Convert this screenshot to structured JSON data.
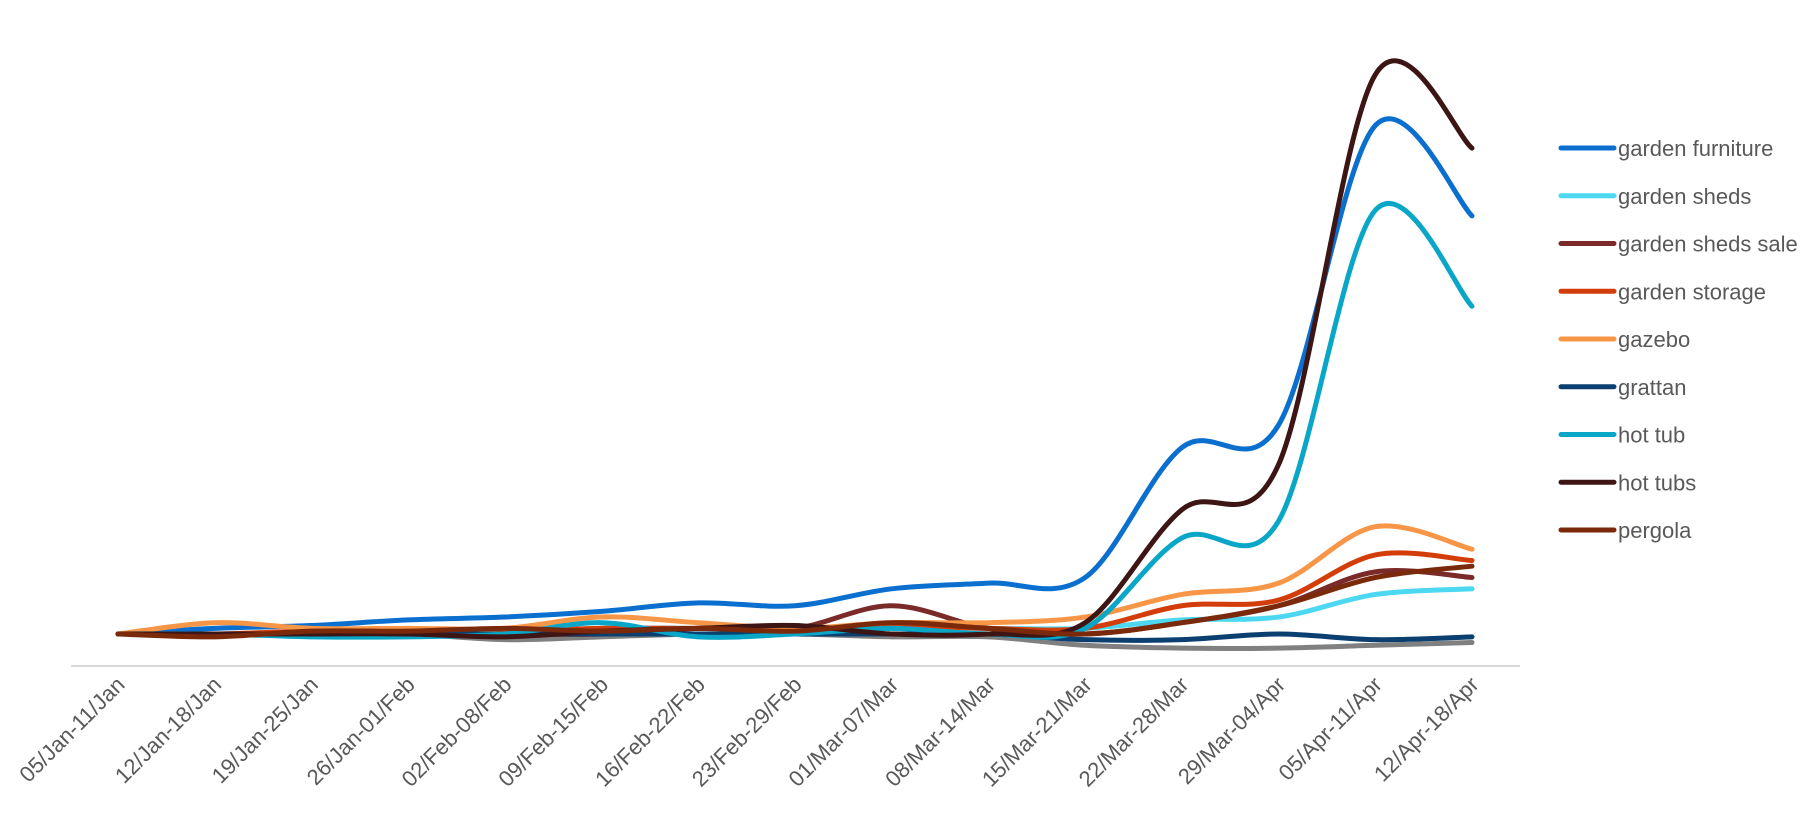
{
  "chart_data": {
    "type": "line",
    "title": "",
    "xlabel": "",
    "ylabel": "",
    "ylim": [
      -5,
      100
    ],
    "grid": false,
    "legend_position": "right",
    "categories": [
      "05/Jan-11/Jan",
      "12/Jan-18/Jan",
      "19/Jan-25/Jan",
      "26/Jan-01/Feb",
      "02/Feb-08/Feb",
      "09/Feb-15/Feb",
      "16/Feb-22/Feb",
      "23/Feb-29/Feb",
      "01/Mar-07/Mar",
      "08/Mar-14/Mar",
      "15/Mar-21/Mar",
      "22/Mar-28/Mar",
      "29/Mar-04/Apr",
      "05/Apr-11/Apr",
      "12/Apr-18/Apr"
    ],
    "series": [
      {
        "name": "garden furniture",
        "color": "#0a6fcf",
        "values": [
          0,
          1,
          1.5,
          2.5,
          3,
          4,
          5.5,
          5,
          8,
          9,
          10,
          33,
          37,
          90,
          74
        ]
      },
      {
        "name": "garden sheds",
        "color": "#4bd8f0",
        "values": [
          0,
          0,
          0,
          0,
          0,
          1,
          1,
          1,
          1,
          1,
          1,
          2.5,
          3,
          7,
          8
        ]
      },
      {
        "name": "garden sheds sale",
        "color": "#7b2a2a",
        "values": [
          0,
          0,
          0,
          0,
          0,
          0,
          1,
          1,
          5,
          1,
          0,
          2,
          5,
          11,
          10
        ]
      },
      {
        "name": "garden storage",
        "color": "#d23d0a",
        "values": [
          0,
          0,
          0.5,
          0.5,
          0.5,
          1,
          1,
          1,
          1.5,
          1,
          1,
          5,
          6,
          14,
          13
        ]
      },
      {
        "name": "gazebo",
        "color": "#f79646",
        "values": [
          0,
          2,
          1,
          1,
          1,
          3,
          2,
          1,
          2,
          2,
          3,
          7,
          9,
          19,
          15
        ]
      },
      {
        "name": "grattan",
        "color": "#0a3f70",
        "values": [
          0,
          0,
          0,
          0,
          0,
          0,
          0,
          0,
          0,
          0,
          -1,
          -1,
          0,
          -1,
          -0.5
        ]
      },
      {
        "name": "hot tub",
        "color": "#0aa6c8",
        "values": [
          0,
          0,
          -0.5,
          -0.5,
          0,
          2,
          -0.5,
          0,
          1,
          0,
          1,
          17,
          20,
          75,
          58
        ]
      },
      {
        "name": "hot tubs",
        "color": "#3d1515",
        "values": [
          0,
          0,
          0,
          0,
          -0.5,
          0.5,
          1,
          1.5,
          0,
          0,
          2,
          22,
          30,
          99,
          86
        ]
      },
      {
        "name": "pergola",
        "color": "#7a2a0a",
        "values": [
          0,
          -0.5,
          0.5,
          0.5,
          1,
          0.5,
          1,
          0.5,
          2,
          1,
          0,
          2,
          5,
          10,
          12
        ]
      },
      {
        "name": "",
        "color": "#808080",
        "values": [
          0,
          0,
          0,
          0,
          -1,
          -0.5,
          0,
          0,
          -0.5,
          -0.5,
          -2,
          -2.5,
          -2.5,
          -2,
          -1.5
        ]
      }
    ]
  }
}
